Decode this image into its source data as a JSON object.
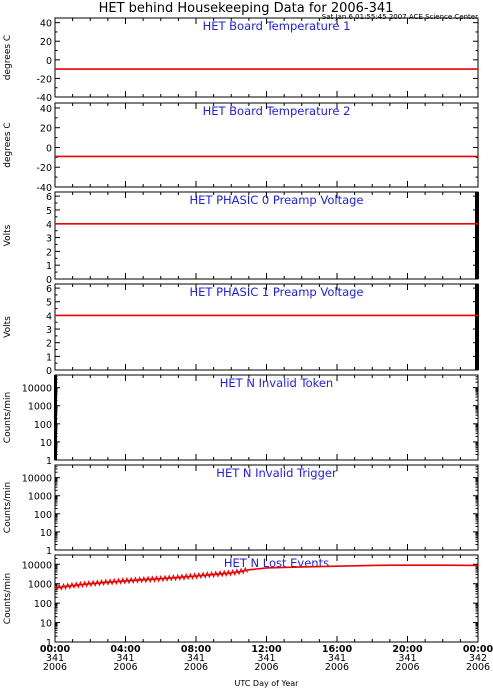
{
  "header": {
    "title": "HET behind Housekeeping Data for 2006-341",
    "stamp": "Sat Jan  6 01:55:45 2007 ACE Science Center"
  },
  "x_axis": {
    "label": "UTC Day of Year",
    "range_hours": [
      0,
      24
    ],
    "ticks": [
      {
        "hour": 0,
        "time": "00:00",
        "doy": "341",
        "year": "2006"
      },
      {
        "hour": 4,
        "time": "04:00",
        "doy": "341",
        "year": "2006"
      },
      {
        "hour": 8,
        "time": "08:00",
        "doy": "341",
        "year": "2006"
      },
      {
        "hour": 12,
        "time": "12:00",
        "doy": "341",
        "year": "2006"
      },
      {
        "hour": 16,
        "time": "16:00",
        "doy": "341",
        "year": "2006"
      },
      {
        "hour": 20,
        "time": "20:00",
        "doy": "341",
        "year": "2006"
      },
      {
        "hour": 24,
        "time": "00:00",
        "doy": "342",
        "year": "2006"
      }
    ]
  },
  "colors": {
    "title": "#2222dd",
    "data": "#ee0000",
    "axis": "#000000"
  },
  "chart_data": [
    {
      "type": "line",
      "title": "HET Board Temperature 1",
      "ylabel": "degrees C",
      "scale": "linear",
      "ylim": [
        -40,
        45
      ],
      "yticks": [
        -40,
        -20,
        0,
        20,
        40
      ],
      "series": [
        {
          "x": [
            0,
            24
          ],
          "y": [
            -10,
            -10
          ]
        }
      ]
    },
    {
      "type": "line",
      "title": "HET Board Temperature 2",
      "ylabel": "degrees C",
      "scale": "linear",
      "ylim": [
        -40,
        45
      ],
      "yticks": [
        -40,
        -20,
        0,
        20,
        40
      ],
      "series": [
        {
          "x": [
            0,
            24
          ],
          "y": [
            -9,
            -9
          ]
        }
      ]
    },
    {
      "type": "line",
      "title": "HET PHASIC 0 Preamp Voltage",
      "ylabel": "Volts",
      "scale": "linear",
      "ylim": [
        0,
        6.3
      ],
      "yticks": [
        0,
        1,
        2,
        3,
        4,
        5,
        6
      ],
      "right_edge_band": true,
      "series": [
        {
          "x": [
            0,
            24
          ],
          "y": [
            4.0,
            4.0
          ]
        }
      ]
    },
    {
      "type": "line",
      "title": "HET PHASIC 1 Preamp Voltage",
      "ylabel": "Volts",
      "scale": "linear",
      "ylim": [
        0,
        6.3
      ],
      "yticks": [
        0,
        1,
        2,
        3,
        4,
        5,
        6
      ],
      "right_edge_band": true,
      "series": [
        {
          "x": [
            0,
            24
          ],
          "y": [
            4.0,
            4.0
          ]
        }
      ]
    },
    {
      "type": "line",
      "title": "HET N Invalid Token",
      "ylabel": "Counts/min",
      "scale": "log",
      "ylim": [
        1,
        50000
      ],
      "yticks": [
        1,
        10,
        100,
        1000,
        10000
      ],
      "left_edge_band": true,
      "series": []
    },
    {
      "type": "line",
      "title": "HET N Invalid Trigger",
      "ylabel": "Counts/min",
      "scale": "log",
      "ylim": [
        1,
        50000
      ],
      "yticks": [
        1,
        10,
        100,
        1000,
        10000
      ],
      "series": []
    },
    {
      "type": "line",
      "title": "HET N Lost Events",
      "ylabel": "Counts/min",
      "scale": "log",
      "ylim": [
        1,
        30000
      ],
      "yticks": [
        1,
        10,
        100,
        1000,
        10000
      ],
      "series": [
        {
          "x": [
            0,
            0.5,
            1,
            2,
            3,
            4,
            5,
            6,
            7,
            8,
            9,
            10,
            10.5,
            11,
            12,
            14,
            16,
            18,
            19,
            20,
            22,
            24
          ],
          "y": [
            600,
            700,
            800,
            1000,
            1200,
            1400,
            1600,
            1800,
            2100,
            2500,
            3000,
            3600,
            4200,
            5200,
            6500,
            7300,
            8000,
            8800,
            9000,
            9000,
            9000,
            8800
          ]
        }
      ]
    }
  ]
}
